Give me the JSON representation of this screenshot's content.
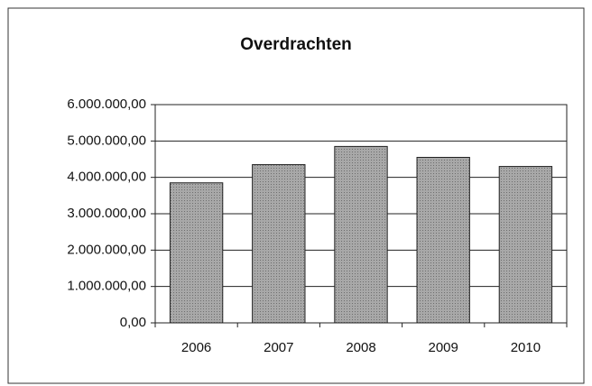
{
  "chart_data": {
    "type": "bar",
    "title": "Overdrachten",
    "categories": [
      "2006",
      "2007",
      "2008",
      "2009",
      "2010"
    ],
    "values": [
      3850000,
      4350000,
      4850000,
      4550000,
      4300000
    ],
    "color": "#9a9a9a",
    "ylim": [
      0,
      6000000
    ],
    "yticks": [
      {
        "value": 0,
        "label": "0,00"
      },
      {
        "value": 1000000,
        "label": "1.000.000,00"
      },
      {
        "value": 2000000,
        "label": "2.000.000,00"
      },
      {
        "value": 3000000,
        "label": "3.000.000,00"
      },
      {
        "value": 4000000,
        "label": "4.000.000,00"
      },
      {
        "value": 5000000,
        "label": "5.000.000,00"
      },
      {
        "value": 6000000,
        "label": "6.000.000,00"
      }
    ],
    "grid": true
  }
}
